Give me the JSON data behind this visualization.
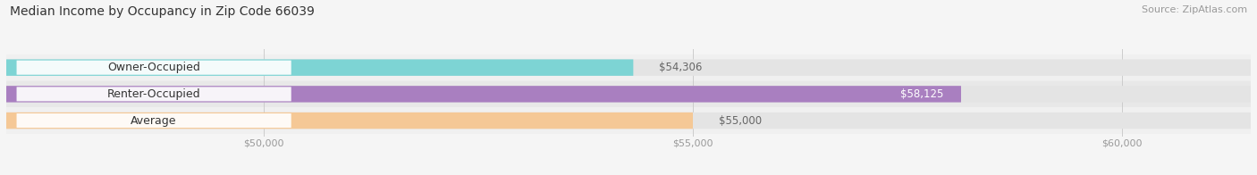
{
  "title": "Median Income by Occupancy in Zip Code 66039",
  "source": "Source: ZipAtlas.com",
  "categories": [
    "Owner-Occupied",
    "Renter-Occupied",
    "Average"
  ],
  "values": [
    54306,
    58125,
    55000
  ],
  "bar_colors": [
    "#7dd4d4",
    "#a97fc0",
    "#f5c896"
  ],
  "bar_track_color": "#e4e4e4",
  "row_bg_colors": [
    "#f0f0f0",
    "#e8e8e8",
    "#f0f0f0"
  ],
  "value_labels": [
    "$54,306",
    "$58,125",
    "$55,000"
  ],
  "value_inside": [
    false,
    true,
    false
  ],
  "xmin": 47000,
  "xmax": 61500,
  "xticks": [
    50000,
    55000,
    60000
  ],
  "xtick_labels": [
    "$50,000",
    "$55,000",
    "$60,000"
  ],
  "title_fontsize": 10,
  "source_fontsize": 8,
  "label_fontsize": 9,
  "value_fontsize": 8.5,
  "background_color": "#f5f5f5",
  "white": "#ffffff",
  "dark_text": "#333333",
  "mid_text": "#666666",
  "light_text": "#999999"
}
